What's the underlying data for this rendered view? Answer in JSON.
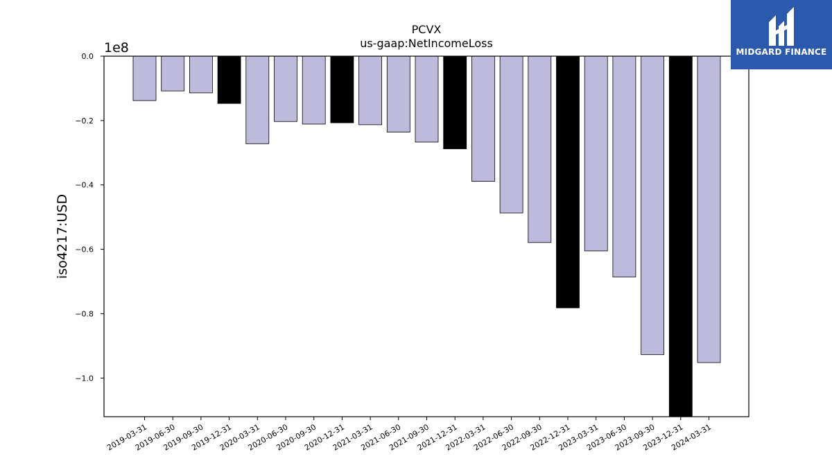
{
  "chart_data": {
    "type": "bar",
    "title": "PCVX",
    "subtitle": "us-gaap:NetIncomeLoss",
    "ylabel": "iso4217:USD",
    "xlabel": "",
    "offset_text": "1e8",
    "ylim": [
      -1.12,
      0.0
    ],
    "y_scale_factor": 100000000,
    "yticks": [
      0.0,
      -0.2,
      -0.4,
      -0.6,
      -0.8,
      -1.0
    ],
    "ytick_labels": [
      "0.0",
      "−0.2",
      "−0.4",
      "−0.6",
      "−0.8",
      "−1.0"
    ],
    "grid": false,
    "categories": [
      "2019-03-31",
      "2019-06-30",
      "2019-09-30",
      "2019-12-31",
      "2020-03-31",
      "2020-06-30",
      "2020-09-30",
      "2020-12-31",
      "2021-03-31",
      "2021-06-30",
      "2021-09-30",
      "2021-12-31",
      "2022-03-31",
      "2022-06-30",
      "2022-09-30",
      "2022-12-31",
      "2023-03-31",
      "2023-06-30",
      "2023-09-30",
      "2023-12-31",
      "2024-03-31"
    ],
    "values": [
      -0.138,
      -0.108,
      -0.114,
      -0.147,
      -0.272,
      -0.203,
      -0.211,
      -0.207,
      -0.213,
      -0.236,
      -0.267,
      -0.288,
      -0.389,
      -0.487,
      -0.579,
      -0.782,
      -0.605,
      -0.686,
      -0.927,
      -1.12,
      -0.952
    ],
    "bar_kind": [
      "quarter",
      "quarter",
      "quarter",
      "annual",
      "quarter",
      "quarter",
      "quarter",
      "annual",
      "quarter",
      "quarter",
      "quarter",
      "annual",
      "quarter",
      "quarter",
      "quarter",
      "annual",
      "quarter",
      "quarter",
      "quarter",
      "annual",
      "quarter"
    ],
    "colors": {
      "quarter": "#bdbadb",
      "annual": "#000000",
      "edge": "#000000"
    }
  },
  "logo": {
    "text": "MIDGARD FINANCE"
  }
}
